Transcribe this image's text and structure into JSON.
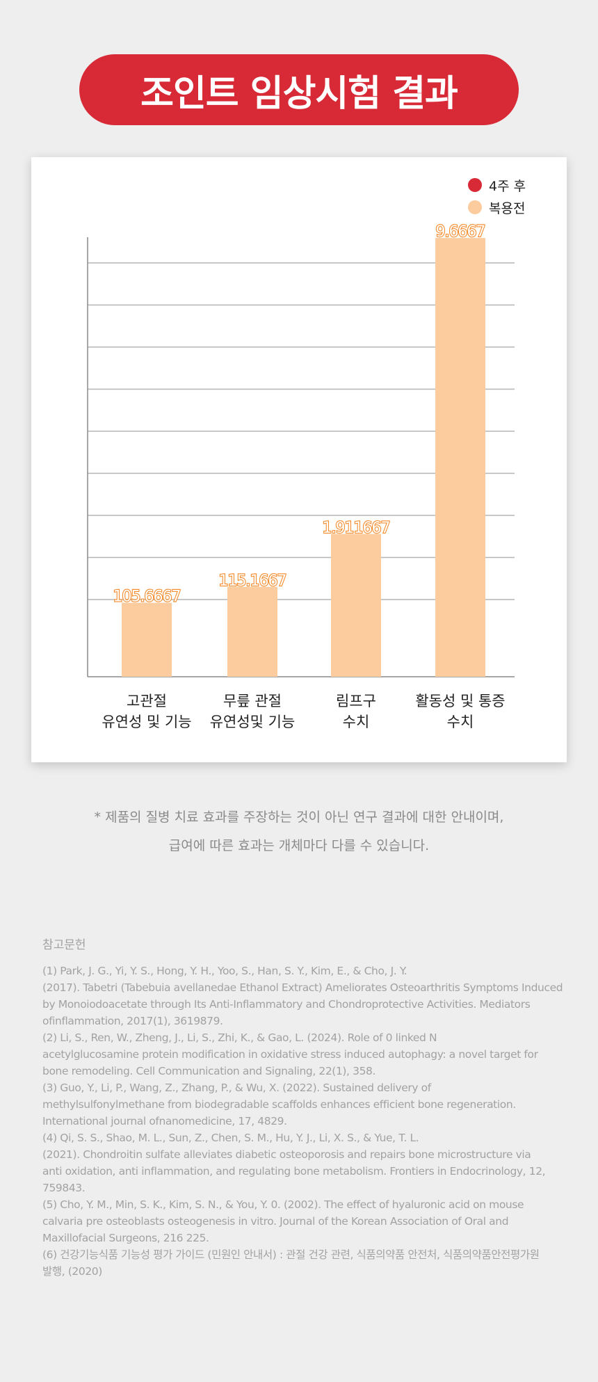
{
  "header": {
    "title": "조인트 임상시험 결과"
  },
  "legend": [
    {
      "label": "4주 후",
      "color": "#d82a36"
    },
    {
      "label": "복용전",
      "color": "#fdcc9e"
    }
  ],
  "chart_data": {
    "type": "bar",
    "categories": [
      [
        "고관절",
        "유연성 및 기능"
      ],
      [
        "무릎 관절",
        "유연성및 기능"
      ],
      [
        "림프구",
        "수치"
      ],
      [
        "활동성 및 통증",
        "수치"
      ]
    ],
    "series": [
      {
        "name": "복용전",
        "values_display": [
          "105.6667",
          "115.1667",
          "1.911667",
          "9.6667"
        ],
        "relative_height": [
          0.14,
          0.17,
          0.27,
          0.83
        ],
        "color": "#fdcc9e"
      }
    ],
    "grid": true,
    "legend_position": "top-right"
  },
  "notes": [
    "* 제품의 질병 치료 효과를 주장하는 것이 아닌 연구 결과에 대한 안내이며,",
    "급여에 따른 효과는 개체마다 다를 수 있습니다."
  ],
  "references": {
    "title": "참고문헌",
    "lines": [
      "(1)  Park, J. G., Yi, Y. S., Hong, Y. H., Yoo, S., Han, S. Y., Kim, E.,  & Cho, J. Y.",
      "(2017). Tabetri  (Tabebuia avellanedae Ethanol Extract) Ameliorates Osteoarthritis Symptoms Induced",
      "by Monoiodoacetate through Its Anti-Inflammatory and Chondroprotective Activities. Mediators",
      "ofinflammation, 2017(1), 3619879.",
      "(2) Li, S., Ren, W., Zheng, J., Li, S., Zhi, K., & Gao, L. (2024). Role of 0 linked N",
      "acetylglucosamine protein modification in oxidative stress induced autophagy: a novel target for",
      "bone remodeling. Cell Communication and Signaling, 22(1), 358.",
      "(3) Guo, Y., Li, P., Wang, Z., Zhang, P., & Wu, X. (2022). Sustained delivery of",
      "methylsulfonylmethane from biodegradable scaffolds enhances efficient bone regeneration.",
      "International journal ofnanomedicine, 17, 4829.",
      "(4) Qi, S. S., Shao, M. L., Sun, Z., Chen, S. M., Hu, Y. J., Li, X. S.,  & Yue, T. L.",
      "(2021). Chondroitin sulfate alleviates diabetic osteoporosis and repairs bone microstructure via",
      "anti oxidation, anti inflammation, and regulating bone metabolism. Frontiers in Endocrinology, 12,",
      "759843.",
      "(5) Cho, Y. M., Min, S. K., Kim, S. N., & You, Y. 0. (2002). The effect of hyaluronic acid on mouse",
      "calvaria pre osteoblasts osteogenesis in vitro. Journal of the Korean Association of Oral and",
      "Maxillofacial Surgeons, 216 225.",
      "(6) 건강기능식품 기능성 평가 가이드 (민원인 안내서) :  관절 건강 관련, 식품의약품 안전처, 식품의약품안전평가원",
      "발행, (2020)"
    ]
  }
}
